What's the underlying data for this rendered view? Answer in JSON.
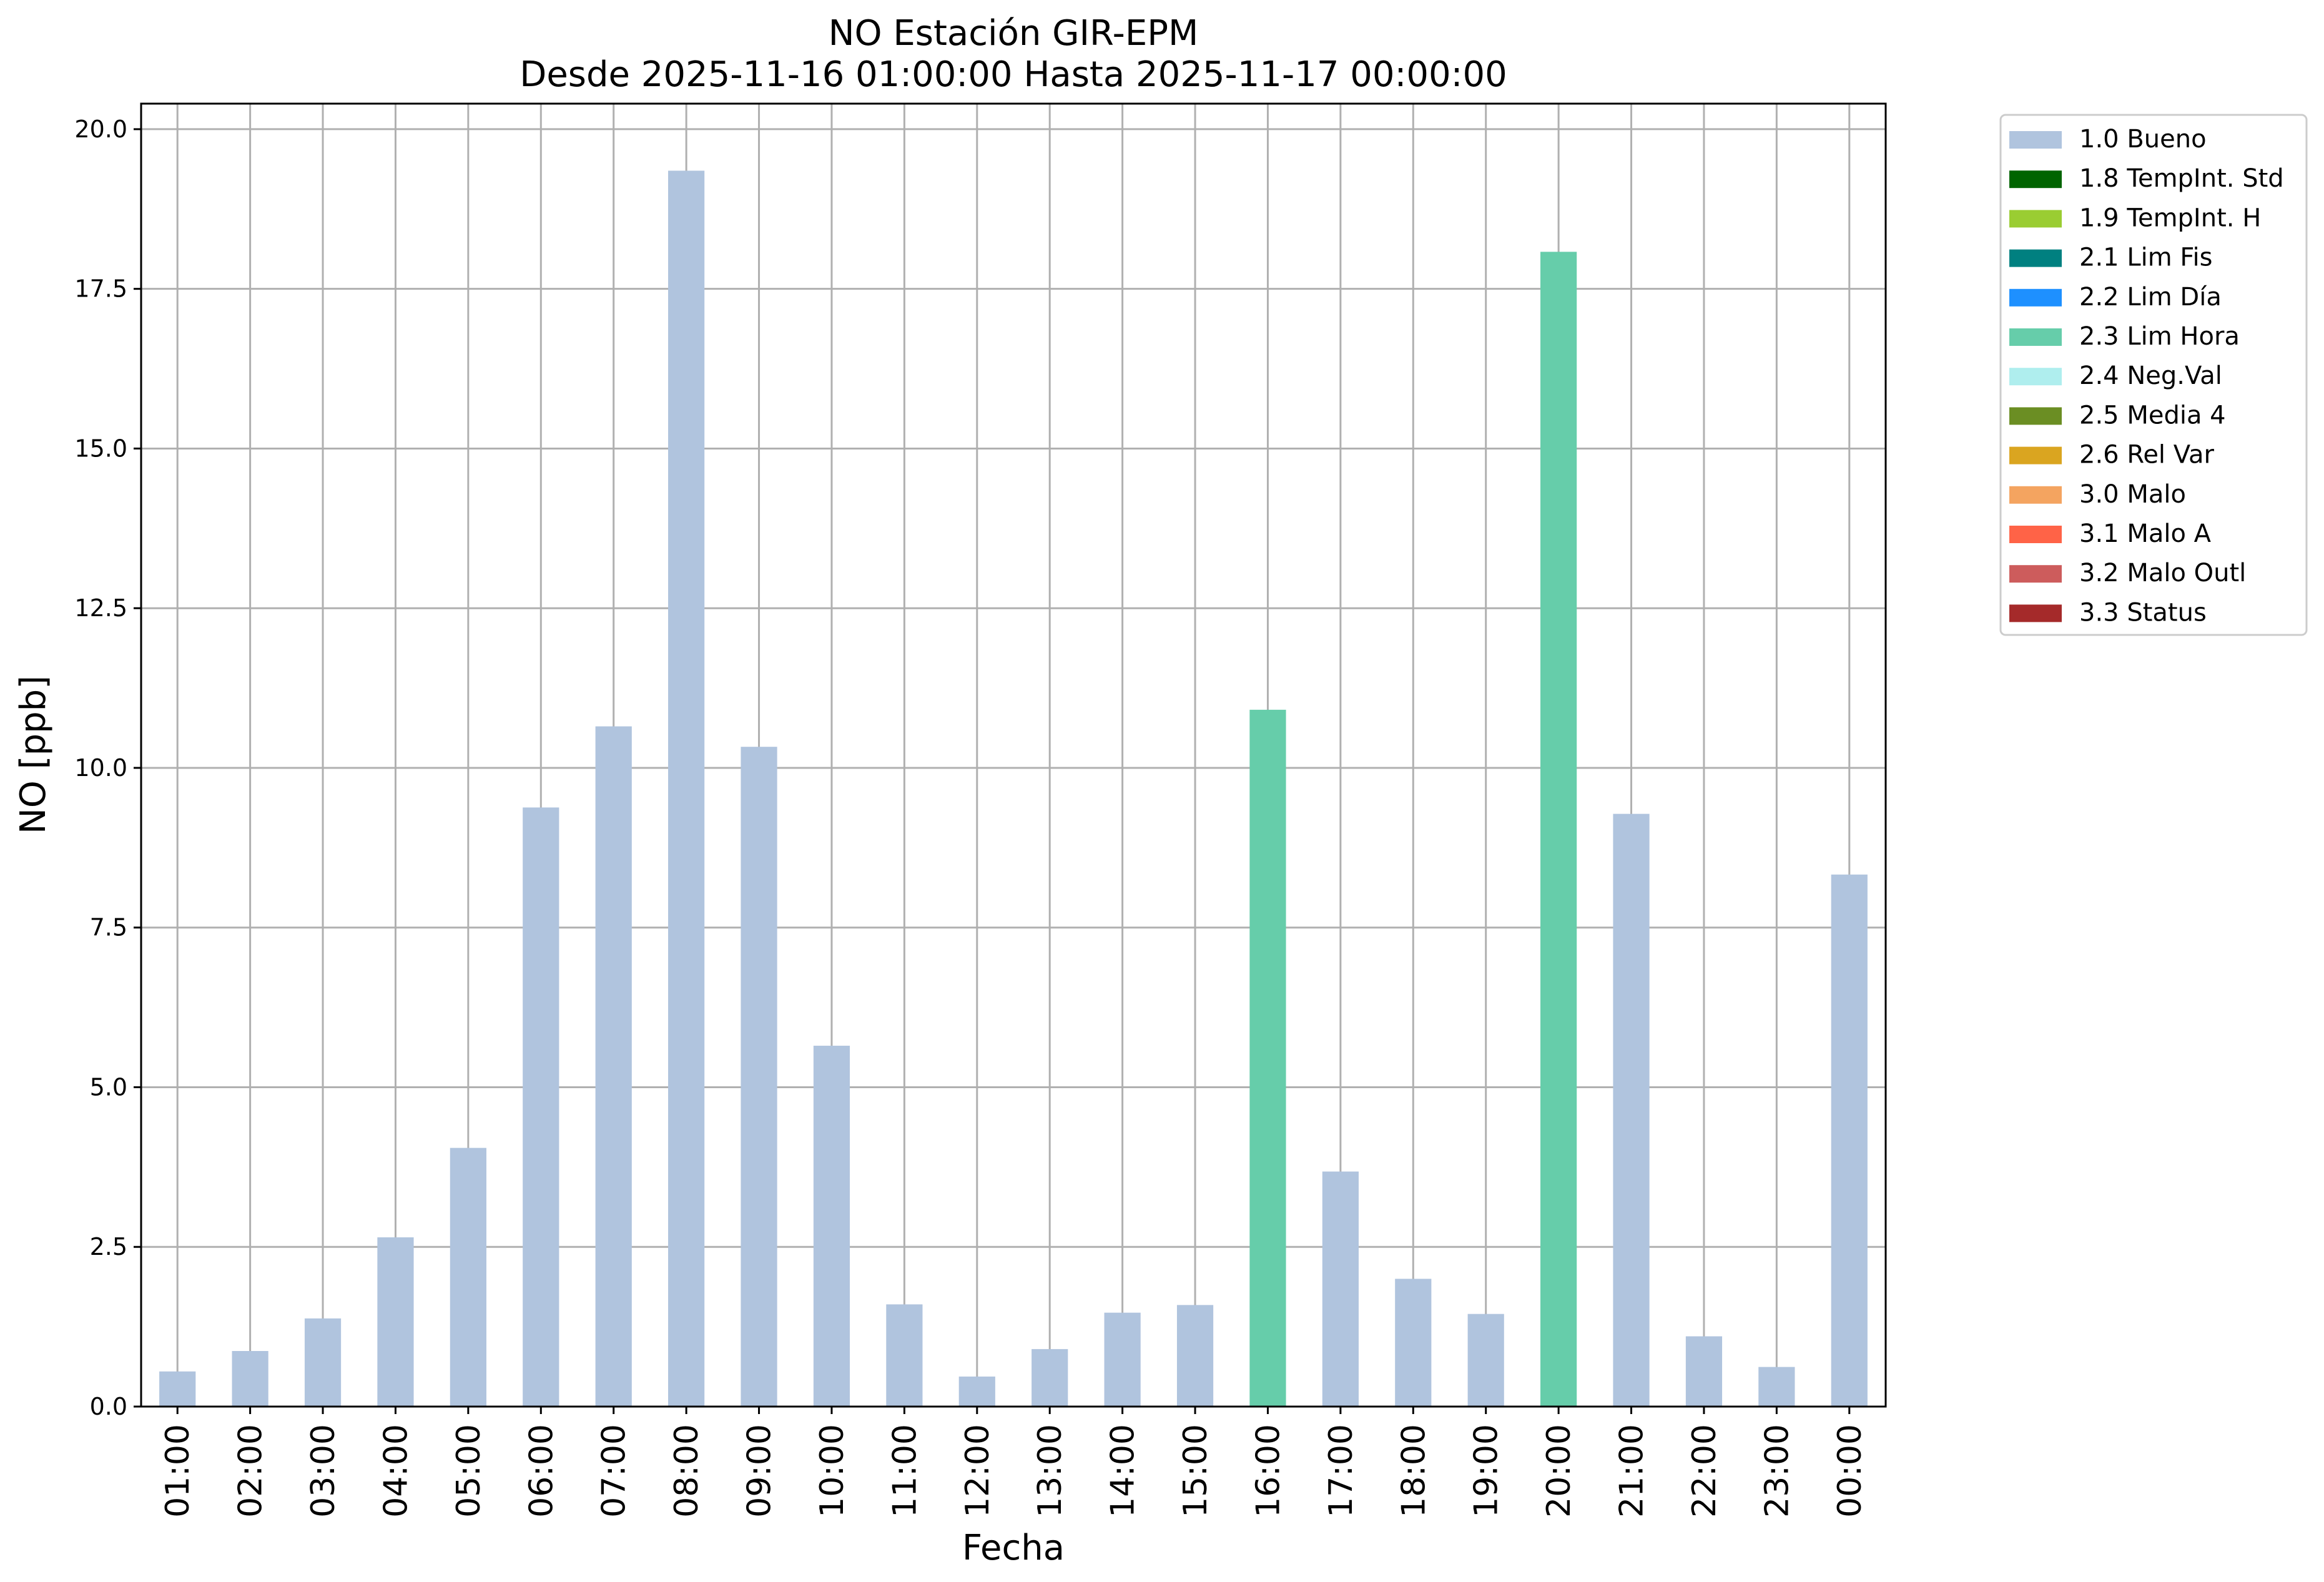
{
  "chart_data": {
    "type": "bar",
    "title": "NO Estación GIR-EPM",
    "subtitle": "Desde 2025-11-16 01:00:00 Hasta 2025-11-17 00:00:00",
    "xlabel": "Fecha",
    "ylabel": "NO [ppb]",
    "ylim": [
      0,
      20.4
    ],
    "yticks": [
      "0.0",
      "2.5",
      "5.0",
      "7.5",
      "10.0",
      "12.5",
      "15.0",
      "17.5",
      "20.0"
    ],
    "grid": true,
    "legend_position": "outside-top-right",
    "categories": [
      "01:00",
      "02:00",
      "03:00",
      "04:00",
      "05:00",
      "06:00",
      "07:00",
      "08:00",
      "09:00",
      "10:00",
      "11:00",
      "12:00",
      "13:00",
      "14:00",
      "15:00",
      "16:00",
      "17:00",
      "18:00",
      "19:00",
      "20:00",
      "21:00",
      "22:00",
      "23:00",
      "00:00"
    ],
    "values": [
      0.55,
      0.87,
      1.38,
      2.65,
      4.05,
      9.38,
      10.65,
      19.35,
      10.33,
      5.65,
      1.6,
      0.47,
      0.9,
      1.47,
      1.59,
      10.91,
      3.68,
      2.0,
      1.45,
      18.08,
      9.28,
      1.1,
      0.62,
      8.33
    ],
    "flags": [
      "1.0 Bueno",
      "1.0 Bueno",
      "1.0 Bueno",
      "1.0 Bueno",
      "1.0 Bueno",
      "1.0 Bueno",
      "1.0 Bueno",
      "1.0 Bueno",
      "1.0 Bueno",
      "1.0 Bueno",
      "1.0 Bueno",
      "1.0 Bueno",
      "1.0 Bueno",
      "1.0 Bueno",
      "1.0 Bueno",
      "2.3 Lim Hora",
      "1.0 Bueno",
      "1.0 Bueno",
      "1.0 Bueno",
      "2.3 Lim Hora",
      "1.0 Bueno",
      "1.0 Bueno",
      "1.0 Bueno",
      "1.0 Bueno"
    ],
    "legend": [
      {
        "name": "1.0 Bueno",
        "color": "#b0c4de"
      },
      {
        "name": "1.8 TempInt. Std",
        "color": "#006400"
      },
      {
        "name": "1.9 TempInt. H",
        "color": "#9acd32"
      },
      {
        "name": "2.1 Lim Fis",
        "color": "#008080"
      },
      {
        "name": "2.2 Lim Día",
        "color": "#1e90ff"
      },
      {
        "name": "2.3 Lim Hora",
        "color": "#66cdaa"
      },
      {
        "name": "2.4 Neg.Val",
        "color": "#afeeee"
      },
      {
        "name": "2.5 Media 4",
        "color": "#6b8e23"
      },
      {
        "name": "2.6 Rel Var",
        "color": "#daa520"
      },
      {
        "name": "3.0 Malo",
        "color": "#f4a460"
      },
      {
        "name": "3.1 Malo A",
        "color": "#ff6347"
      },
      {
        "name": "3.2 Malo Outl",
        "color": "#cd5c5c"
      },
      {
        "name": "3.3 Status",
        "color": "#a52a2a"
      }
    ]
  }
}
